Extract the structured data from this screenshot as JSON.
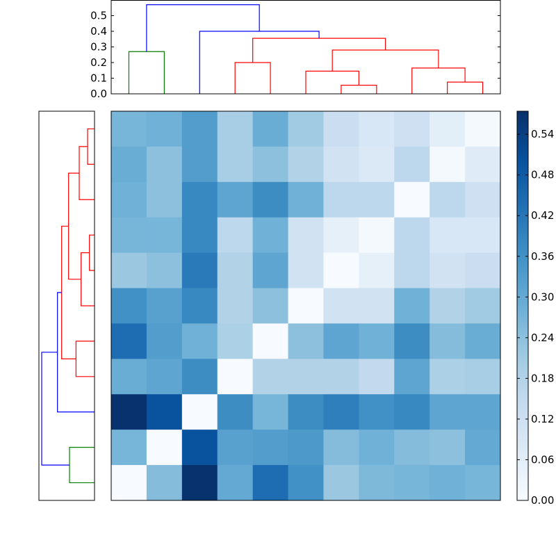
{
  "chart_data": [
    {
      "type": "dendrogram",
      "orientation": "top",
      "ylim": [
        0,
        0.6
      ],
      "yticks": [
        "0.0",
        "0.1",
        "0.2",
        "0.3",
        "0.4",
        "0.5"
      ],
      "leaf_count": 11,
      "links": [
        {
          "left": 0,
          "right": 1,
          "height": 0.27,
          "color": "#008000"
        },
        {
          "left": 3,
          "right": 4,
          "height": 0.2,
          "color": "#ff0000"
        },
        {
          "left": 6,
          "right": 7,
          "height": 0.055,
          "color": "#ff0000"
        },
        {
          "left": 5,
          "right": 6.5,
          "height": 0.145,
          "color": "#ff0000"
        },
        {
          "left": 9,
          "right": 10,
          "height": 0.075,
          "color": "#ff0000"
        },
        {
          "left": 8,
          "right": 9.5,
          "height": 0.165,
          "color": "#ff0000"
        },
        {
          "left": 5.75,
          "right": 8.75,
          "height": 0.28,
          "color": "#ff0000"
        },
        {
          "left": 3.5,
          "right": 7.25,
          "height": 0.355,
          "color": "#ff0000"
        },
        {
          "left": 2,
          "right": 5.375,
          "height": 0.4,
          "color": "#0000ff"
        },
        {
          "left": 0.5,
          "right": 3.6875,
          "height": 0.57,
          "color": "#0000ff"
        }
      ]
    },
    {
      "type": "dendrogram",
      "orientation": "left",
      "xlim": [
        0,
        0.6
      ],
      "leaf_count": 11,
      "same_tree_as": "top"
    },
    {
      "type": "heatmap",
      "colormap": "Blues",
      "vmin": 0,
      "vmax": 0.574,
      "colorbar_ticks": [
        "0.00",
        "0.06",
        "0.12",
        "0.18",
        "0.24",
        "0.30",
        "0.36",
        "0.42",
        "0.48",
        "0.54"
      ],
      "values": [
        [
          0.27,
          0.28,
          0.33,
          0.2,
          0.29,
          0.21,
          0.13,
          0.09,
          0.12,
          0.06,
          0.01
        ],
        [
          0.29,
          0.24,
          0.33,
          0.2,
          0.24,
          0.18,
          0.11,
          0.08,
          0.16,
          0.01,
          0.07
        ],
        [
          0.28,
          0.24,
          0.38,
          0.31,
          0.37,
          0.28,
          0.16,
          0.16,
          0.0,
          0.16,
          0.12
        ],
        [
          0.27,
          0.27,
          0.38,
          0.16,
          0.28,
          0.11,
          0.05,
          0.01,
          0.16,
          0.09,
          0.09
        ],
        [
          0.22,
          0.24,
          0.41,
          0.18,
          0.31,
          0.11,
          0.0,
          0.05,
          0.16,
          0.11,
          0.13
        ],
        [
          0.36,
          0.32,
          0.38,
          0.18,
          0.24,
          0.0,
          0.11,
          0.11,
          0.28,
          0.18,
          0.21
        ],
        [
          0.44,
          0.33,
          0.28,
          0.19,
          0.0,
          0.24,
          0.31,
          0.28,
          0.37,
          0.25,
          0.29
        ],
        [
          0.29,
          0.31,
          0.37,
          0.0,
          0.18,
          0.18,
          0.18,
          0.15,
          0.31,
          0.19,
          0.2
        ],
        [
          0.57,
          0.5,
          0.0,
          0.37,
          0.27,
          0.37,
          0.4,
          0.36,
          0.38,
          0.31,
          0.31
        ],
        [
          0.27,
          0.0,
          0.5,
          0.32,
          0.33,
          0.34,
          0.25,
          0.28,
          0.25,
          0.24,
          0.3
        ],
        [
          0.0,
          0.25,
          0.57,
          0.3,
          0.44,
          0.36,
          0.22,
          0.26,
          0.27,
          0.28,
          0.27
        ]
      ]
    }
  ]
}
